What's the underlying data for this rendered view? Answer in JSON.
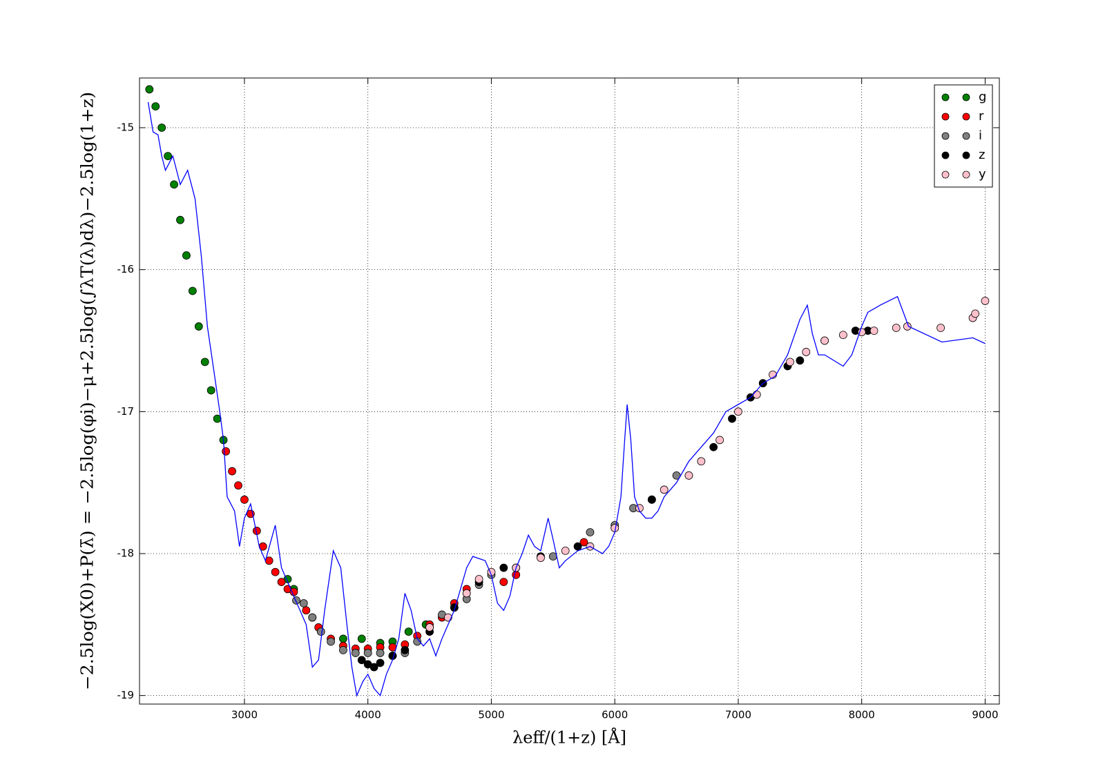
{
  "chart_data": {
    "type": "scatter",
    "x_label": "λeff/(1+z) [Å]",
    "y_label": "−2.5log(X0)+P(λ̄) = −2.5log(φi)−μ+2.5log(∫λT(λ)dλ)−2.5log(1+z)",
    "xlim": [
      2150,
      9115
    ],
    "ylim": [
      -19.06,
      -14.65
    ],
    "xticks": [
      3000,
      4000,
      5000,
      6000,
      7000,
      8000,
      9000
    ],
    "yticks": [
      -19,
      -18,
      -17,
      -16,
      -15
    ],
    "grid": true,
    "legend": "upper right",
    "series": [
      {
        "name": "g",
        "color": "#008000",
        "x": [
          2230,
          2280,
          2330,
          2380,
          2430,
          2480,
          2530,
          2580,
          2630,
          2680,
          2730,
          2780,
          2830,
          3350,
          3400,
          3550,
          3800,
          3950,
          4100,
          4200,
          4330,
          4470
        ],
        "values": [
          -14.73,
          -14.85,
          -15.0,
          -15.2,
          -15.4,
          -15.65,
          -15.9,
          -16.15,
          -16.4,
          -16.65,
          -16.85,
          -17.05,
          -17.2,
          -18.18,
          -18.25,
          -18.45,
          -18.6,
          -18.6,
          -18.63,
          -18.62,
          -18.55,
          -18.5
        ]
      },
      {
        "name": "r",
        "color": "#ff0000",
        "x": [
          2850,
          2900,
          2950,
          3000,
          3050,
          3100,
          3150,
          3200,
          3250,
          3300,
          3350,
          3400,
          3500,
          3600,
          3700,
          3800,
          3900,
          4000,
          4100,
          4200,
          4300,
          4400,
          4500,
          4600,
          4700,
          4800,
          5100,
          5200,
          5750
        ],
        "values": [
          -17.28,
          -17.42,
          -17.52,
          -17.62,
          -17.72,
          -17.84,
          -17.95,
          -18.05,
          -18.13,
          -18.2,
          -18.25,
          -18.27,
          -18.4,
          -18.52,
          -18.6,
          -18.65,
          -18.67,
          -18.67,
          -18.66,
          -18.66,
          -18.64,
          -18.58,
          -18.5,
          -18.45,
          -18.35,
          -18.25,
          -18.2,
          -18.15,
          -17.92
        ]
      },
      {
        "name": "i",
        "color": "#808080",
        "x": [
          3420,
          3480,
          3550,
          3620,
          3700,
          3800,
          3900,
          4000,
          4100,
          4200,
          4300,
          4400,
          4500,
          4600,
          4700,
          4800,
          4900,
          5000,
          5200,
          5500,
          5800,
          6000,
          6150,
          6300,
          6500
        ],
        "values": [
          -18.33,
          -18.35,
          -18.45,
          -18.55,
          -18.62,
          -18.68,
          -18.7,
          -18.7,
          -18.7,
          -18.72,
          -18.7,
          -18.62,
          -18.52,
          -18.43,
          -18.38,
          -18.32,
          -18.22,
          -18.15,
          -18.1,
          -18.02,
          -17.85,
          -17.8,
          -17.68,
          -17.62,
          -17.45
        ]
      },
      {
        "name": "z",
        "color": "#000000",
        "x": [
          3950,
          4000,
          4050,
          4100,
          4200,
          4300,
          4500,
          4700,
          4900,
          5100,
          5400,
          5700,
          6000,
          6300,
          6600,
          6800,
          6950,
          7100,
          7200,
          7400,
          7500,
          7700,
          7950,
          8050
        ],
        "values": [
          -18.75,
          -18.78,
          -18.8,
          -18.77,
          -18.72,
          -18.68,
          -18.55,
          -18.38,
          -18.2,
          -18.1,
          -18.02,
          -17.95,
          -17.82,
          -17.62,
          -17.45,
          -17.25,
          -17.05,
          -16.9,
          -16.8,
          -16.68,
          -16.64,
          -16.5,
          -16.43,
          -16.43
        ]
      },
      {
        "name": "y",
        "color": "#ffc0cb",
        "x": [
          4500,
          4650,
          4800,
          4900,
          5000,
          5200,
          5400,
          5600,
          5800,
          6000,
          6200,
          6400,
          6600,
          6700,
          6850,
          7000,
          7150,
          7280,
          7420,
          7550,
          7700,
          7850,
          8000,
          8100,
          8280,
          8370,
          8640,
          8900,
          8920,
          9000
        ],
        "values": [
          -18.52,
          -18.45,
          -18.28,
          -18.18,
          -18.13,
          -18.1,
          -18.03,
          -17.98,
          -17.95,
          -17.82,
          -17.68,
          -17.55,
          -17.45,
          -17.35,
          -17.2,
          -17.0,
          -16.88,
          -16.74,
          -16.65,
          -16.58,
          -16.5,
          -16.46,
          -16.44,
          -16.43,
          -16.41,
          -16.4,
          -16.41,
          -16.34,
          -16.31,
          -16.22
        ]
      }
    ],
    "line": {
      "color": "#0000ff",
      "x": [
        2220,
        2260,
        2300,
        2330,
        2360,
        2420,
        2480,
        2540,
        2600,
        2650,
        2700,
        2750,
        2800,
        2830,
        2860,
        2920,
        2960,
        3000,
        3050,
        3120,
        3170,
        3250,
        3300,
        3350,
        3400,
        3450,
        3500,
        3550,
        3600,
        3650,
        3720,
        3780,
        3830,
        3870,
        3910,
        3960,
        4000,
        4050,
        4100,
        4150,
        4200,
        4250,
        4300,
        4350,
        4400,
        4450,
        4500,
        4550,
        4600,
        4700,
        4800,
        4850,
        4950,
        5000,
        5050,
        5100,
        5150,
        5200,
        5250,
        5300,
        5350,
        5400,
        5460,
        5500,
        5550,
        5600,
        5700,
        5800,
        5900,
        5950,
        6000,
        6050,
        6080,
        6100,
        6130,
        6160,
        6200,
        6250,
        6300,
        6350,
        6400,
        6500,
        6600,
        6700,
        6800,
        6900,
        7000,
        7100,
        7200,
        7300,
        7400,
        7500,
        7560,
        7600,
        7650,
        7700,
        7850,
        7920,
        8000,
        8050,
        8150,
        8290,
        8380,
        8650,
        8900,
        9000
      ],
      "values": [
        -14.82,
        -15.03,
        -15.05,
        -15.2,
        -15.3,
        -15.2,
        -15.4,
        -15.3,
        -15.5,
        -15.9,
        -16.4,
        -16.7,
        -17.0,
        -17.2,
        -17.6,
        -17.7,
        -17.95,
        -17.75,
        -17.65,
        -17.95,
        -18.05,
        -17.8,
        -18.1,
        -18.2,
        -18.3,
        -18.4,
        -18.5,
        -18.8,
        -18.75,
        -18.4,
        -17.98,
        -18.1,
        -18.5,
        -18.8,
        -19.0,
        -18.9,
        -18.85,
        -18.95,
        -19.0,
        -18.85,
        -18.75,
        -18.6,
        -18.28,
        -18.4,
        -18.6,
        -18.65,
        -18.6,
        -18.72,
        -18.6,
        -18.4,
        -18.1,
        -18.02,
        -18.05,
        -18.15,
        -18.35,
        -18.4,
        -18.3,
        -18.1,
        -18.0,
        -17.87,
        -17.95,
        -17.98,
        -17.75,
        -17.9,
        -18.1,
        -18.05,
        -17.98,
        -17.95,
        -18.0,
        -17.95,
        -17.85,
        -17.6,
        -17.2,
        -16.95,
        -17.2,
        -17.6,
        -17.7,
        -17.75,
        -17.75,
        -17.7,
        -17.6,
        -17.5,
        -17.35,
        -17.25,
        -17.15,
        -17.0,
        -16.95,
        -16.9,
        -16.8,
        -16.75,
        -16.6,
        -16.35,
        -16.25,
        -16.45,
        -16.6,
        -16.6,
        -16.68,
        -16.6,
        -16.4,
        -16.3,
        -16.25,
        -16.19,
        -16.4,
        -16.51,
        -16.48,
        -16.52
      ]
    }
  }
}
